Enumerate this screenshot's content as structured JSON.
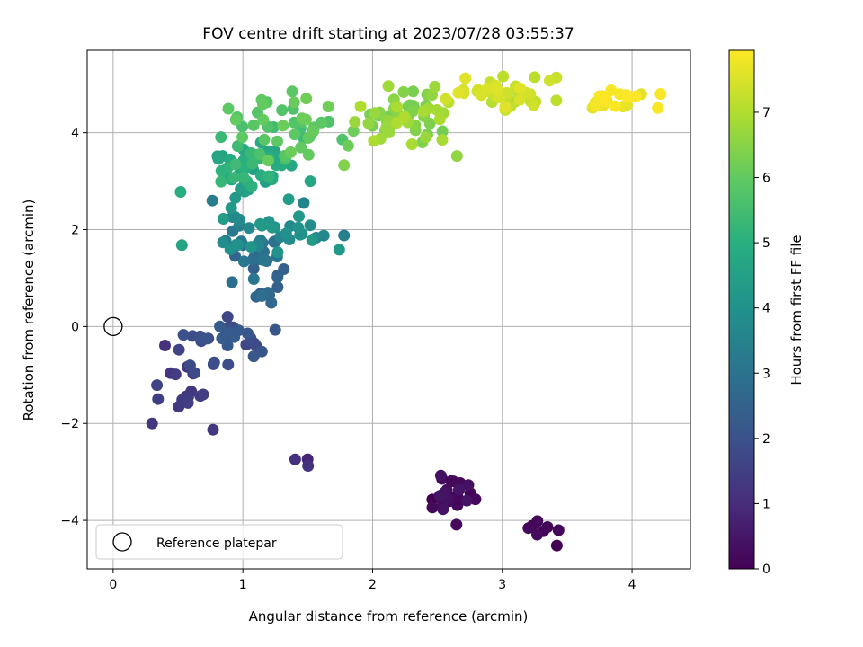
{
  "chart_data": {
    "type": "scatter",
    "title": "FOV centre drift starting at 2023/07/28 03:55:37",
    "xlabel": "Angular distance from reference (arcmin)",
    "ylabel": "Rotation from reference (arcmin)",
    "xlim": [
      -0.2,
      4.45
    ],
    "ylim": [
      -5.0,
      5.7
    ],
    "xticks": [
      0,
      1,
      2,
      3,
      4
    ],
    "xtick_labels": [
      "0",
      "1",
      "2",
      "3",
      "4"
    ],
    "yticks": [
      -4,
      -2,
      0,
      2,
      4
    ],
    "ytick_labels": [
      "−4",
      "−2",
      "0",
      "2",
      "4"
    ],
    "grid": true,
    "colormap": "viridis",
    "colorbar": {
      "label": "Hours from first FF file",
      "range": [
        0,
        7.95
      ],
      "ticks": [
        0,
        1,
        2,
        3,
        4,
        5,
        6,
        7
      ],
      "tick_labels": [
        "0",
        "1",
        "2",
        "3",
        "4",
        "5",
        "6",
        "7"
      ]
    },
    "legend": {
      "entries": [
        "Reference platepar"
      ],
      "position": "lower-left"
    },
    "reference_point": {
      "x": 0,
      "y": 0
    },
    "clusters": [
      {
        "hours": [
          0.0,
          0.45
        ],
        "x": [
          2.4,
          2.85
        ],
        "y": [
          -4.1,
          -3.0
        ],
        "n": 26
      },
      {
        "hours": [
          0.0,
          0.25
        ],
        "x": [
          3.1,
          3.45
        ],
        "y": [
          -4.6,
          -3.8
        ],
        "n": 7
      },
      {
        "hours": [
          0.6,
          1.1
        ],
        "x": [
          1.35,
          1.6
        ],
        "y": [
          -3.0,
          -2.5
        ],
        "n": 3
      },
      {
        "hours": [
          1.1,
          1.6
        ],
        "x": [
          0.25,
          0.8
        ],
        "y": [
          -2.2,
          -0.3
        ],
        "n": 16
      },
      {
        "hours": [
          1.6,
          2.4
        ],
        "x": [
          0.5,
          1.25
        ],
        "y": [
          -1.0,
          0.3
        ],
        "n": 30
      },
      {
        "hours": [
          2.4,
          3.3
        ],
        "x": [
          0.8,
          1.5
        ],
        "y": [
          0.3,
          2.3
        ],
        "n": 32
      },
      {
        "hours": [
          3.3,
          4.4
        ],
        "x": [
          0.65,
          1.8
        ],
        "y": [
          1.2,
          2.7
        ],
        "n": 40
      },
      {
        "hours": [
          4.4,
          5.4
        ],
        "x": [
          0.7,
          1.45
        ],
        "y": [
          2.7,
          4.0
        ],
        "n": 45
      },
      {
        "hours": [
          5.4,
          6.2
        ],
        "x": [
          0.8,
          1.9
        ],
        "y": [
          3.3,
          4.8
        ],
        "n": 45
      },
      {
        "hours": [
          6.2,
          7.0
        ],
        "x": [
          1.8,
          2.75
        ],
        "y": [
          3.4,
          5.0
        ],
        "n": 55
      },
      {
        "hours": [
          7.0,
          7.6
        ],
        "x": [
          2.5,
          3.45
        ],
        "y": [
          4.4,
          5.25
        ],
        "n": 45
      },
      {
        "hours": [
          7.6,
          7.95
        ],
        "x": [
          3.55,
          4.25
        ],
        "y": [
          4.4,
          5.0
        ],
        "n": 20
      }
    ],
    "isolated_points": [
      {
        "x": 0.52,
        "y": 2.78,
        "hours": 4.9
      },
      {
        "x": 0.53,
        "y": 1.68,
        "hours": 4.6
      },
      {
        "x": 0.77,
        "y": -2.13,
        "hours": 1.3
      },
      {
        "x": 0.3,
        "y": -2.0,
        "hours": 1.3
      },
      {
        "x": 1.52,
        "y": 3.0,
        "hours": 4.7
      },
      {
        "x": 1.78,
        "y": 1.88,
        "hours": 3.4
      },
      {
        "x": 1.78,
        "y": 3.33,
        "hours": 6.4
      },
      {
        "x": 2.65,
        "y": 3.52,
        "hours": 6.6
      },
      {
        "x": 4.22,
        "y": 4.8,
        "hours": 7.9
      },
      {
        "x": 1.25,
        "y": -0.07,
        "hours": 2.1
      },
      {
        "x": 1.38,
        "y": 4.85,
        "hours": 5.9
      },
      {
        "x": 3.42,
        "y": -4.52,
        "hours": 0.0
      }
    ]
  }
}
